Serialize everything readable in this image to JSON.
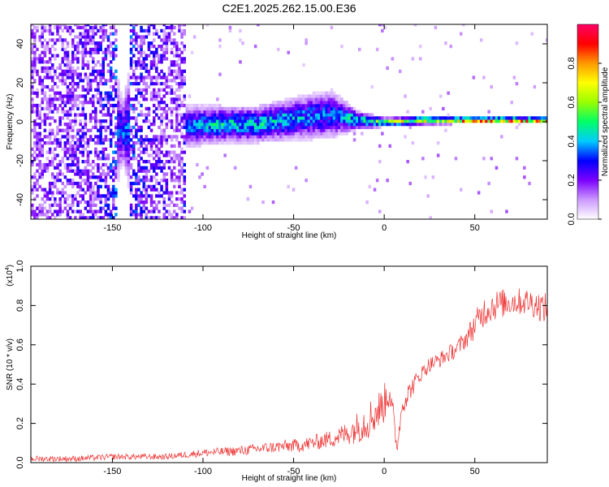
{
  "title": "C2E1.2025.262.15.00.E36",
  "chart_data": [
    {
      "type": "heatmap",
      "title": "C2E1.2025.262.15.00.E36",
      "xlabel": "Height of straight line (km)",
      "ylabel": "Frequency (Hz)",
      "xlim": [
        -195,
        90
      ],
      "ylim": [
        -50,
        50
      ],
      "x_ticks": [
        -150,
        -100,
        -50,
        0,
        50
      ],
      "y_ticks": [
        -40,
        -20,
        0,
        20,
        40
      ],
      "colorbar": {
        "label": "Normalized spectral amplitude",
        "range": [
          0,
          1
        ],
        "ticks": [
          "0.0",
          "0.2",
          "0.4",
          "0.6",
          "0.8"
        ],
        "colormap": [
          "#ffffff",
          "#cc99ff",
          "#7b00ff",
          "#0000ff",
          "#00ccff",
          "#00ff66",
          "#99ff00",
          "#ffff00",
          "#ff9900",
          "#ff0000",
          "#ff0066"
        ]
      },
      "profile": [
        {
          "x": -195,
          "amp": 0.2,
          "spread": 50,
          "offset": 0
        },
        {
          "x": -160,
          "amp": 0.25,
          "spread": 50,
          "offset": 0
        },
        {
          "x": -145,
          "amp": 0.35,
          "spread": 10,
          "offset": -6
        },
        {
          "x": -130,
          "amp": 0.25,
          "spread": 50,
          "offset": 0
        },
        {
          "x": -112,
          "amp": 0.2,
          "spread": 50,
          "offset": 0
        },
        {
          "x": -110,
          "amp": 0.35,
          "spread": 7,
          "offset": -3
        },
        {
          "x": -90,
          "amp": 0.45,
          "spread": 6,
          "offset": -2
        },
        {
          "x": -70,
          "amp": 0.45,
          "spread": 6,
          "offset": -2
        },
        {
          "x": -50,
          "amp": 0.4,
          "spread": 7,
          "offset": 1
        },
        {
          "x": -30,
          "amp": 0.35,
          "spread": 8,
          "offset": 3
        },
        {
          "x": -15,
          "amp": 0.5,
          "spread": 3,
          "offset": 0
        },
        {
          "x": 0,
          "amp": 0.6,
          "spread": 1.5,
          "offset": -1
        },
        {
          "x": 20,
          "amp": 0.7,
          "spread": 1.5,
          "offset": 0
        },
        {
          "x": 40,
          "amp": 0.85,
          "spread": 1.2,
          "offset": 0
        },
        {
          "x": 90,
          "amp": 0.9,
          "spread": 1.2,
          "offset": 0
        }
      ]
    },
    {
      "type": "line",
      "xlabel": "Height of straight line (km)",
      "ylabel": "SNR (10 * v/v)",
      "y_multiplier": "(x10",
      "y_multiplier_exp": "4",
      "y_multiplier_close": ")",
      "xlim": [
        -195,
        90
      ],
      "ylim": [
        0,
        1
      ],
      "x_ticks": [
        -150,
        -100,
        -50,
        0,
        50
      ],
      "y_ticks": [
        "0.0",
        "0.2",
        "0.4",
        "0.6",
        "0.8",
        "1.0"
      ],
      "line_color": "#ee3333",
      "series": [
        {
          "x": [
            -195,
            -170,
            -150,
            -120,
            -100,
            -80,
            -60,
            -45,
            -30,
            -20,
            -15,
            -10,
            -5,
            0,
            3,
            5,
            7,
            10,
            15,
            20,
            25,
            30,
            40,
            45,
            50,
            55,
            60,
            70,
            80,
            90
          ],
          "y": [
            0.02,
            0.02,
            0.03,
            0.03,
            0.05,
            0.06,
            0.08,
            0.09,
            0.12,
            0.15,
            0.18,
            0.21,
            0.25,
            0.3,
            0.38,
            0.22,
            0.07,
            0.3,
            0.38,
            0.45,
            0.5,
            0.52,
            0.58,
            0.63,
            0.7,
            0.77,
            0.8,
            0.82,
            0.82,
            0.78
          ],
          "noise": [
            0.015,
            0.015,
            0.015,
            0.015,
            0.02,
            0.025,
            0.03,
            0.035,
            0.045,
            0.06,
            0.08,
            0.1,
            0.1,
            0.1,
            0.1,
            0.08,
            0.03,
            0.06,
            0.05,
            0.04,
            0.04,
            0.04,
            0.045,
            0.05,
            0.07,
            0.08,
            0.08,
            0.07,
            0.07,
            0.08
          ]
        }
      ]
    }
  ]
}
